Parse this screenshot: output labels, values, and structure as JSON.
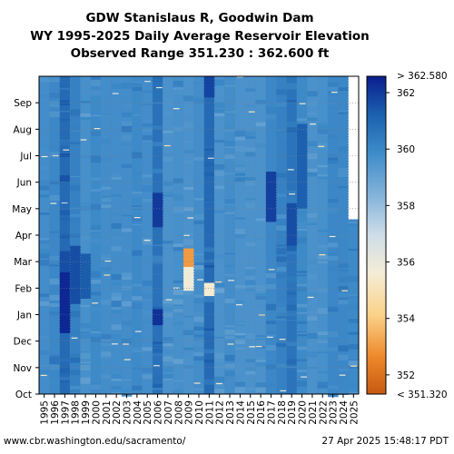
{
  "chart_data": {
    "type": "heatmap",
    "title_lines": [
      "GDW Stanislaus R, Goodwin Dam",
      "WY 1995-2025 Daily Average Reservoir Elevation",
      "Observed Range 351.230 : 362.600 ft"
    ],
    "x_categories": [
      "1995",
      "1996",
      "1997",
      "1998",
      "1999",
      "2000",
      "2001",
      "2002",
      "2003",
      "2004",
      "2005",
      "2006",
      "2007",
      "2008",
      "2009",
      "2010",
      "2011",
      "2012",
      "2013",
      "2014",
      "2015",
      "2016",
      "2017",
      "2018",
      "2019",
      "2020",
      "2021",
      "2022",
      "2023",
      "2024",
      "2025"
    ],
    "y_months": [
      "Oct",
      "Nov",
      "Dec",
      "Jan",
      "Feb",
      "Mar",
      "Apr",
      "May",
      "Jun",
      "Jul",
      "Aug",
      "Sep"
    ],
    "colorbar": {
      "min": 351.32,
      "max": 362.58,
      "ticks": [
        352,
        354,
        356,
        358,
        360,
        362
      ],
      "top_label": "> 362.580",
      "bottom_label": "< 351.320"
    },
    "base_values": [
      359.8,
      360.0,
      360.9,
      360.2,
      359.7,
      359.9,
      359.8,
      359.8,
      359.8,
      359.9,
      359.8,
      360.7,
      359.6,
      359.7,
      359.6,
      359.8,
      360.9,
      359.6,
      359.8,
      359.6,
      359.6,
      359.6,
      360.0,
      360.2,
      360.6,
      359.9,
      359.6,
      359.7,
      360.0,
      360.0,
      359.9
    ],
    "features": [
      {
        "year": "1997",
        "from_month": 2.3,
        "to_month": 5.2,
        "value": 362.4
      },
      {
        "year": "1997",
        "from_month": 4.6,
        "to_month": 5.4,
        "value": 361.6
      },
      {
        "year": "1998",
        "from_month": 3.4,
        "to_month": 5.6,
        "value": 361.6
      },
      {
        "year": "1999",
        "from_month": 3.6,
        "to_month": 5.3,
        "value": 361.3
      },
      {
        "year": "2006",
        "from_month": 2.6,
        "to_month": 3.2,
        "value": 362.2
      },
      {
        "year": "2006",
        "from_month": 6.3,
        "to_month": 7.6,
        "value": 362.0
      },
      {
        "year": "2009",
        "from_month": 3.9,
        "to_month": 5.0,
        "value": 355.8
      },
      {
        "year": "2009",
        "from_month": 4.8,
        "to_month": 5.5,
        "value": 353.0
      },
      {
        "year": "2011",
        "from_month": 3.7,
        "to_month": 4.2,
        "value": 355.5
      },
      {
        "year": "2011",
        "from_month": 11.2,
        "to_month": 12.0,
        "value": 361.8
      },
      {
        "year": "2017",
        "from_month": 6.5,
        "to_month": 8.4,
        "value": 361.9
      },
      {
        "year": "2019",
        "from_month": 5.6,
        "to_month": 7.2,
        "value": 361.6
      },
      {
        "year": "2020",
        "from_month": 7.0,
        "to_month": 10.2,
        "value": 361.2
      },
      {
        "year": "2025",
        "from_month": 6.6,
        "to_month": 12.0,
        "value": null
      }
    ]
  },
  "footer": {
    "source": "www.cbr.washington.edu/sacramento/",
    "timestamp": "27 Apr 2025 15:48:17 PDT"
  }
}
